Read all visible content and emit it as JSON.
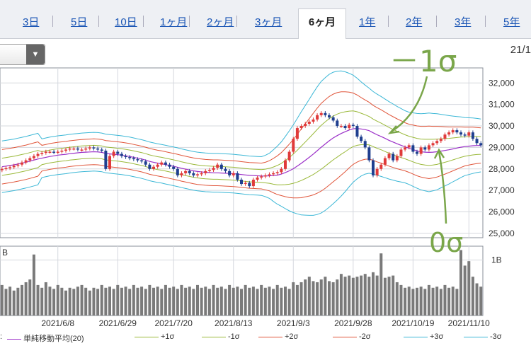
{
  "tabs": [
    {
      "label": "3日",
      "active": false
    },
    {
      "label": "5日",
      "active": false
    },
    {
      "label": "10日",
      "active": false
    },
    {
      "label": "1ヶ月",
      "active": false
    },
    {
      "label": "2ヶ月",
      "active": false
    },
    {
      "label": "3ヶ月",
      "active": false
    },
    {
      "label": "6ヶ月",
      "active": true
    },
    {
      "label": "1年",
      "active": false
    },
    {
      "label": "2年",
      "active": false
    },
    {
      "label": "3年",
      "active": false
    },
    {
      "label": "5年",
      "active": false
    }
  ],
  "date_label": "21/1",
  "annotations": {
    "minus1": "－1σ",
    "zero": "0σ"
  },
  "volume_label_left": "B",
  "volume_label_right": "1B",
  "legend": {
    "prefix": ":",
    "items": [
      {
        "label": "単純移動平均(20)",
        "color": "#9b30c8"
      },
      {
        "label": "+1σ",
        "color": "#9ab93a"
      },
      {
        "label": "-1σ",
        "color": "#9ab93a"
      },
      {
        "label": "+2σ",
        "color": "#e0553a"
      },
      {
        "label": "-2σ",
        "color": "#e0553a"
      },
      {
        "label": "+3σ",
        "color": "#3bb7d6"
      },
      {
        "label": "-3σ",
        "color": "#3bb7d6"
      }
    ]
  },
  "colors": {
    "up": "#e03a3a",
    "down": "#1f3f8f",
    "volume": "#7a7a7a",
    "grid": "#d5d8de"
  },
  "chart_data": {
    "type": "line",
    "title": "",
    "ylim": [
      24800,
      32700
    ],
    "yticks": [
      "32,000",
      "31,000",
      "30,000",
      "29,000",
      "28,000",
      "27,000",
      "26,000",
      "25,000"
    ],
    "ytick_values": [
      32000,
      31000,
      30000,
      29000,
      28000,
      27000,
      26000,
      25000
    ],
    "xtick_labels": [
      "2021/6/8",
      "2021/6/29",
      "2021/7/20",
      "2021/8/13",
      "2021/9/3",
      "2021/9/28",
      "2021/10/19",
      "2021/11/10"
    ],
    "xtick_index": [
      14,
      29,
      43,
      58,
      73,
      88,
      103,
      117
    ],
    "x_count": 121,
    "close": [
      28000,
      28040,
      28080,
      28150,
      28200,
      28300,
      28400,
      28500,
      28600,
      28700,
      28750,
      28800,
      28800,
      28780,
      28800,
      28850,
      28900,
      28950,
      28950,
      28900,
      28900,
      28950,
      29000,
      28950,
      28900,
      28850,
      28000,
      28600,
      28800,
      28700,
      28600,
      28550,
      28500,
      28450,
      28400,
      28350,
      28200,
      28000,
      28100,
      28200,
      28300,
      28200,
      28100,
      28000,
      27700,
      27800,
      27900,
      27800,
      27700,
      27750,
      27800,
      27900,
      27950,
      28050,
      28200,
      28000,
      27900,
      27700,
      27800,
      27500,
      27300,
      27350,
      27200,
      27500,
      27600,
      27650,
      27700,
      27750,
      27800,
      27850,
      28000,
      28400,
      28800,
      29400,
      29900,
      30000,
      30100,
      30200,
      30300,
      30500,
      30600,
      30500,
      30400,
      30250,
      30000,
      30000,
      29900,
      30050,
      30000,
      29500,
      29300,
      29000,
      28400,
      27700,
      28000,
      28200,
      28500,
      28700,
      28400,
      28600,
      28900,
      29000,
      29100,
      28800,
      28700,
      29000,
      28900,
      29100,
      29200,
      29300,
      29400,
      29600,
      29700,
      29800,
      29700,
      29600,
      29550,
      29700,
      29400,
      29200,
      29100
    ],
    "ma": [
      28100,
      28130,
      28160,
      28190,
      28230,
      28270,
      28310,
      28360,
      28410,
      28460,
      28500,
      28540,
      28580,
      28610,
      28640,
      28660,
      28680,
      28710,
      28730,
      28750,
      28770,
      28780,
      28790,
      28800,
      28790,
      28770,
      28720,
      28700,
      28680,
      28660,
      28640,
      28610,
      28580,
      28540,
      28500,
      28460,
      28410,
      28350,
      28310,
      28270,
      28240,
      28200,
      28160,
      28120,
      28080,
      28030,
      27990,
      27950,
      27910,
      27880,
      27860,
      27840,
      27830,
      27820,
      27820,
      27810,
      27800,
      27790,
      27780,
      27760,
      27740,
      27720,
      27700,
      27690,
      27680,
      27670,
      27670,
      27680,
      27690,
      27710,
      27760,
      27830,
      27910,
      28010,
      28130,
      28260,
      28400,
      28540,
      28690,
      28850,
      29010,
      29160,
      29310,
      29440,
      29550,
      29650,
      29730,
      29810,
      29870,
      29880,
      29860,
      29830,
      29780,
      29680,
      29590,
      29510,
      29420,
      29330,
      29250,
      29170,
      29100,
      29030,
      28960,
      28900,
      28840,
      28800,
      28780,
      28770,
      28780,
      28800,
      28830,
      28860,
      28890,
      28930,
      28970,
      29010,
      29040,
      29060,
      29080,
      29090,
      29090
    ],
    "sigma": [
      400,
      400,
      400,
      400,
      400,
      400,
      400,
      400,
      400,
      400,
      300,
      300,
      300,
      300,
      300,
      300,
      300,
      300,
      300,
      300,
      300,
      300,
      300,
      300,
      300,
      300,
      300,
      300,
      300,
      300,
      300,
      300,
      300,
      300,
      300,
      300,
      300,
      300,
      300,
      300,
      300,
      300,
      300,
      300,
      300,
      300,
      300,
      300,
      300,
      300,
      300,
      300,
      300,
      300,
      300,
      300,
      300,
      300,
      300,
      300,
      300,
      300,
      300,
      300,
      300,
      300,
      320,
      350,
      400,
      450,
      500,
      560,
      620,
      680,
      740,
      800,
      850,
      900,
      950,
      990,
      1020,
      1030,
      1030,
      1020,
      1000,
      970,
      930,
      880,
      830,
      780,
      730,
      690,
      660,
      640,
      630,
      620,
      610,
      600,
      590,
      580,
      570,
      560,
      560,
      570,
      580,
      590,
      600,
      610,
      600,
      590,
      570,
      550,
      530,
      510,
      490,
      470,
      450,
      440,
      430,
      420,
      410
    ],
    "volume": [
      55,
      48,
      52,
      45,
      50,
      55,
      60,
      65,
      110,
      55,
      50,
      60,
      52,
      48,
      55,
      50,
      45,
      50,
      48,
      52,
      55,
      50,
      45,
      50,
      48,
      55,
      50,
      52,
      48,
      55,
      50,
      52,
      48,
      55,
      50,
      52,
      48,
      55,
      50,
      52,
      48,
      55,
      50,
      52,
      48,
      55,
      50,
      52,
      48,
      55,
      50,
      52,
      48,
      55,
      50,
      52,
      48,
      55,
      50,
      52,
      48,
      55,
      50,
      52,
      48,
      55,
      50,
      52,
      48,
      55,
      50,
      52,
      48,
      60,
      55,
      60,
      65,
      70,
      62,
      60,
      65,
      70,
      62,
      60,
      65,
      75,
      70,
      72,
      68,
      70,
      72,
      75,
      70,
      78,
      72,
      112,
      68,
      70,
      72,
      60,
      55,
      50,
      52,
      48,
      50,
      52,
      48,
      55,
      50,
      52,
      48,
      55,
      50,
      52,
      48,
      118,
      90,
      98,
      70,
      58,
      52
    ]
  }
}
